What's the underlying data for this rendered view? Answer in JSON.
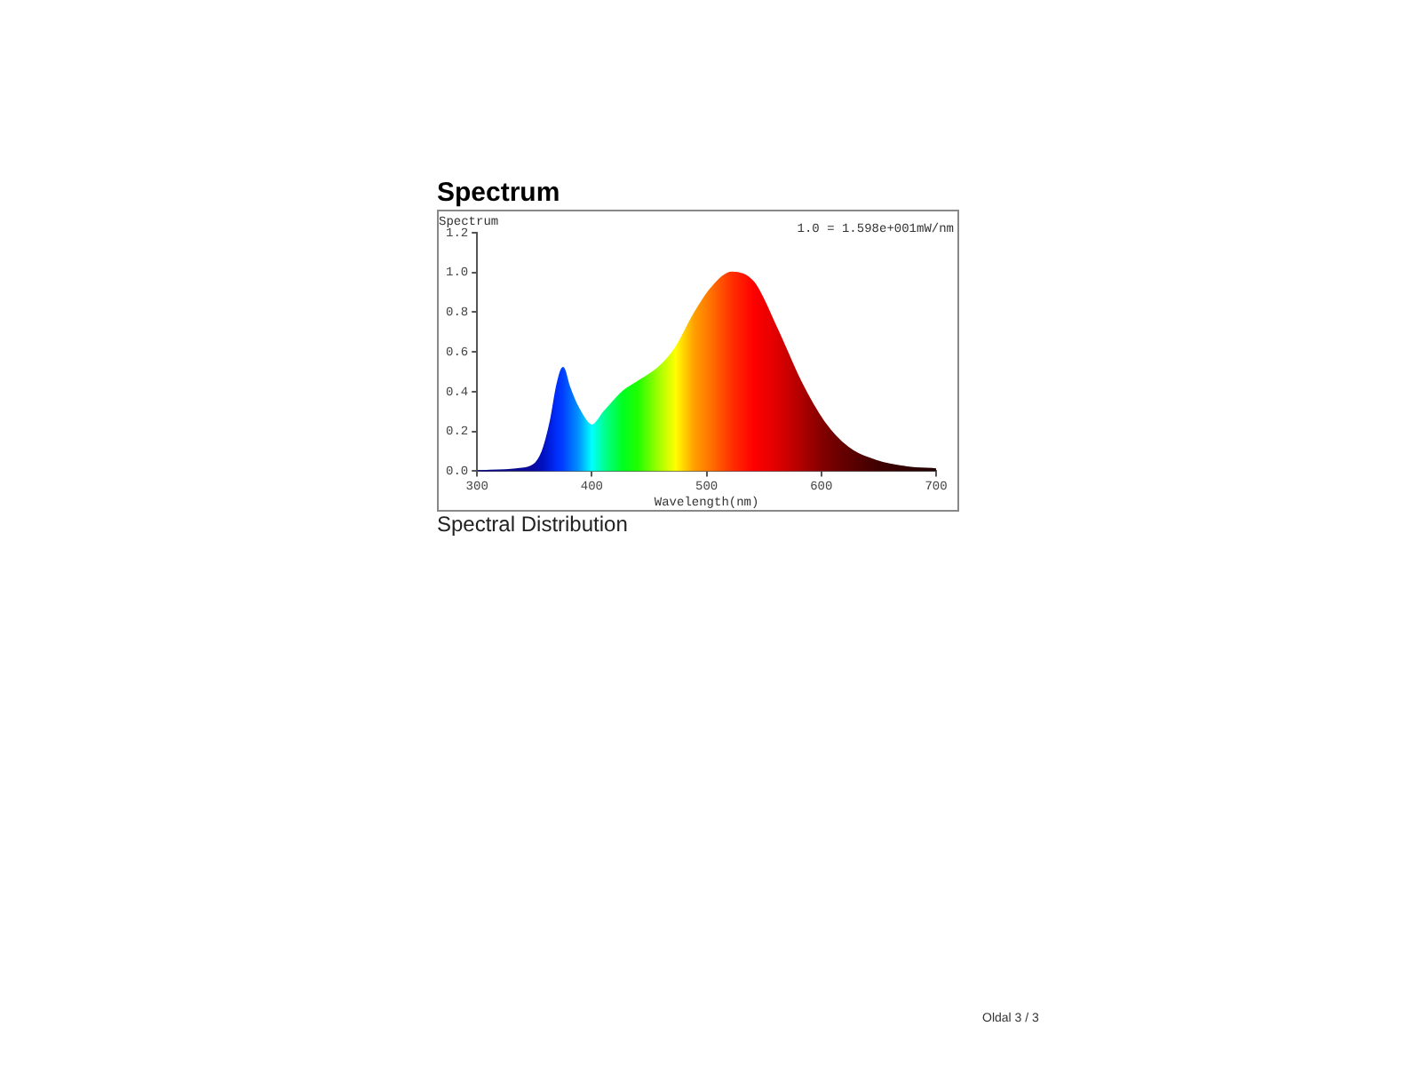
{
  "chart_data": {
    "type": "area",
    "title": "Spectrum",
    "ylabel": "Spectrum",
    "xlabel": "Wavelength(nm)",
    "annotations": [
      "1.0 = 1.598e+001mW/nm",
      "Spectral Distribution",
      "Oldal 3 / 3"
    ],
    "x": [
      300,
      334,
      349,
      357,
      364,
      370,
      375,
      380,
      388,
      400,
      411,
      427,
      440,
      458,
      473,
      489,
      504,
      522,
      541,
      561,
      582,
      602,
      623,
      649,
      675,
      700
    ],
    "values": [
      0,
      0.01,
      0.03,
      0.1,
      0.25,
      0.44,
      0.52,
      0.43,
      0.32,
      0.23,
      0.3,
      0.4,
      0.45,
      0.52,
      0.62,
      0.79,
      0.92,
      1.0,
      0.95,
      0.72,
      0.45,
      0.25,
      0.12,
      0.05,
      0.02,
      0.01
    ],
    "colors": [
      "#0a0a80",
      "#0a0a90",
      "#0a0aa0",
      "#0010c0",
      "#0020e0",
      "#0030ff",
      "#0040ff",
      "#0060ff",
      "#0090ff",
      "#00ffff",
      "#00ff90",
      "#00ff20",
      "#20ff00",
      "#a0ff00",
      "#ffff00",
      "#ffa000",
      "#ff7000",
      "#ff3000",
      "#ff0000",
      "#e00000",
      "#b00000",
      "#800000",
      "#600000",
      "#400000",
      "#300000",
      "#200000"
    ],
    "xlim": [
      300,
      700
    ],
    "xticks": [
      300,
      400,
      500,
      600,
      700
    ],
    "ylim": [
      0,
      1.2
    ],
    "yticks": [
      {
        "value": 0,
        "label": "0.0"
      },
      {
        "value": 0.2,
        "label": "0.2"
      },
      {
        "value": 0.4,
        "label": "0.4"
      },
      {
        "value": 0.6,
        "label": "0.6"
      },
      {
        "value": 0.8,
        "label": "0.8"
      },
      {
        "value": 1,
        "label": "1.0"
      },
      {
        "value": 1.2,
        "label": "1.2"
      }
    ],
    "grid": false,
    "legend": false,
    "marker": "none"
  }
}
